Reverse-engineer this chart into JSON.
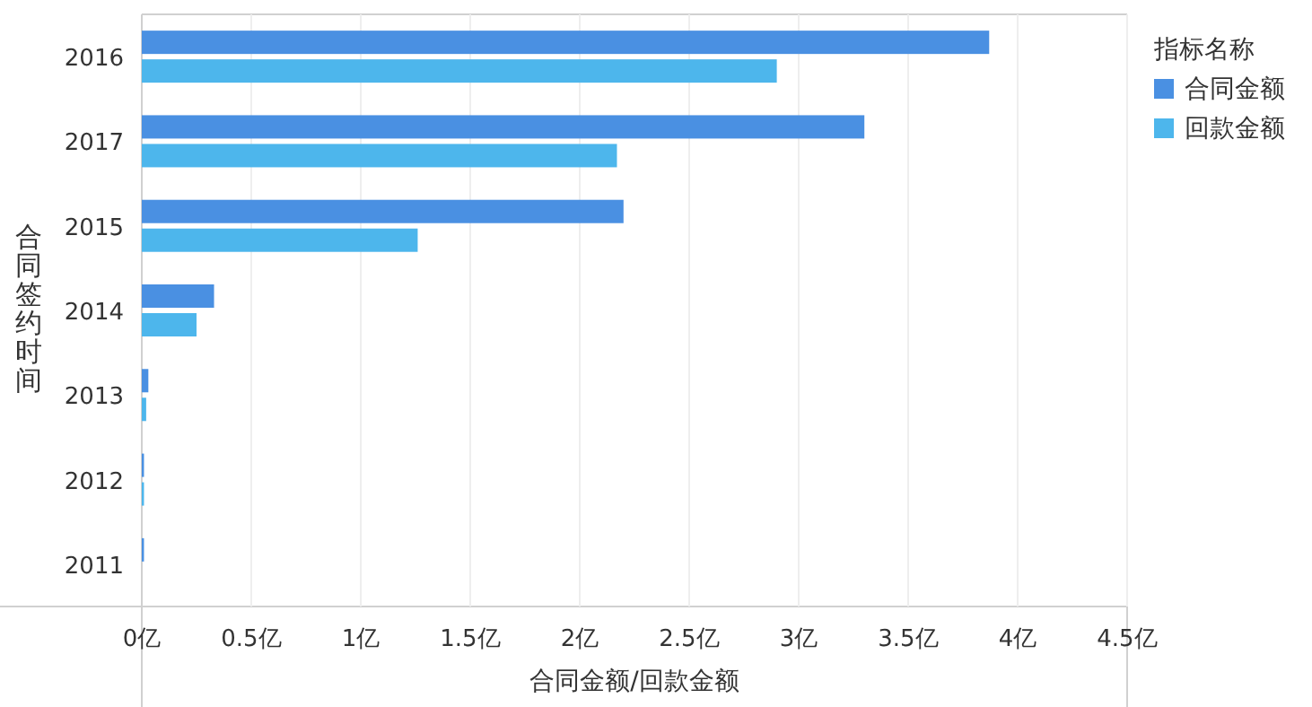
{
  "chart_data": {
    "type": "bar",
    "orientation": "horizontal",
    "xlabel": "合同金额/回款金额",
    "ylabel": "合同签约时间",
    "legend_title": "指标名称",
    "categories": [
      "2016",
      "2017",
      "2015",
      "2014",
      "2013",
      "2012",
      "2011"
    ],
    "series": [
      {
        "name": "合同金额",
        "color": "#4a90e2",
        "values": [
          3.87,
          3.3,
          2.2,
          0.33,
          0.03,
          0.01,
          0.01
        ]
      },
      {
        "name": "回款金额",
        "color": "#4db6ec",
        "values": [
          2.9,
          2.17,
          1.26,
          0.25,
          0.02,
          0.01,
          0
        ]
      }
    ],
    "xlim": [
      0,
      4.5
    ],
    "xticks": [
      {
        "value": 0,
        "label": "0亿"
      },
      {
        "value": 0.5,
        "label": "0.5亿"
      },
      {
        "value": 1,
        "label": "1亿"
      },
      {
        "value": 1.5,
        "label": "1.5亿"
      },
      {
        "value": 2,
        "label": "2亿"
      },
      {
        "value": 2.5,
        "label": "2.5亿"
      },
      {
        "value": 3,
        "label": "3亿"
      },
      {
        "value": 3.5,
        "label": "3.5亿"
      },
      {
        "value": 4,
        "label": "4亿"
      },
      {
        "value": 4.5,
        "label": "4.5亿"
      }
    ],
    "grid": "x",
    "legend": "top right"
  }
}
